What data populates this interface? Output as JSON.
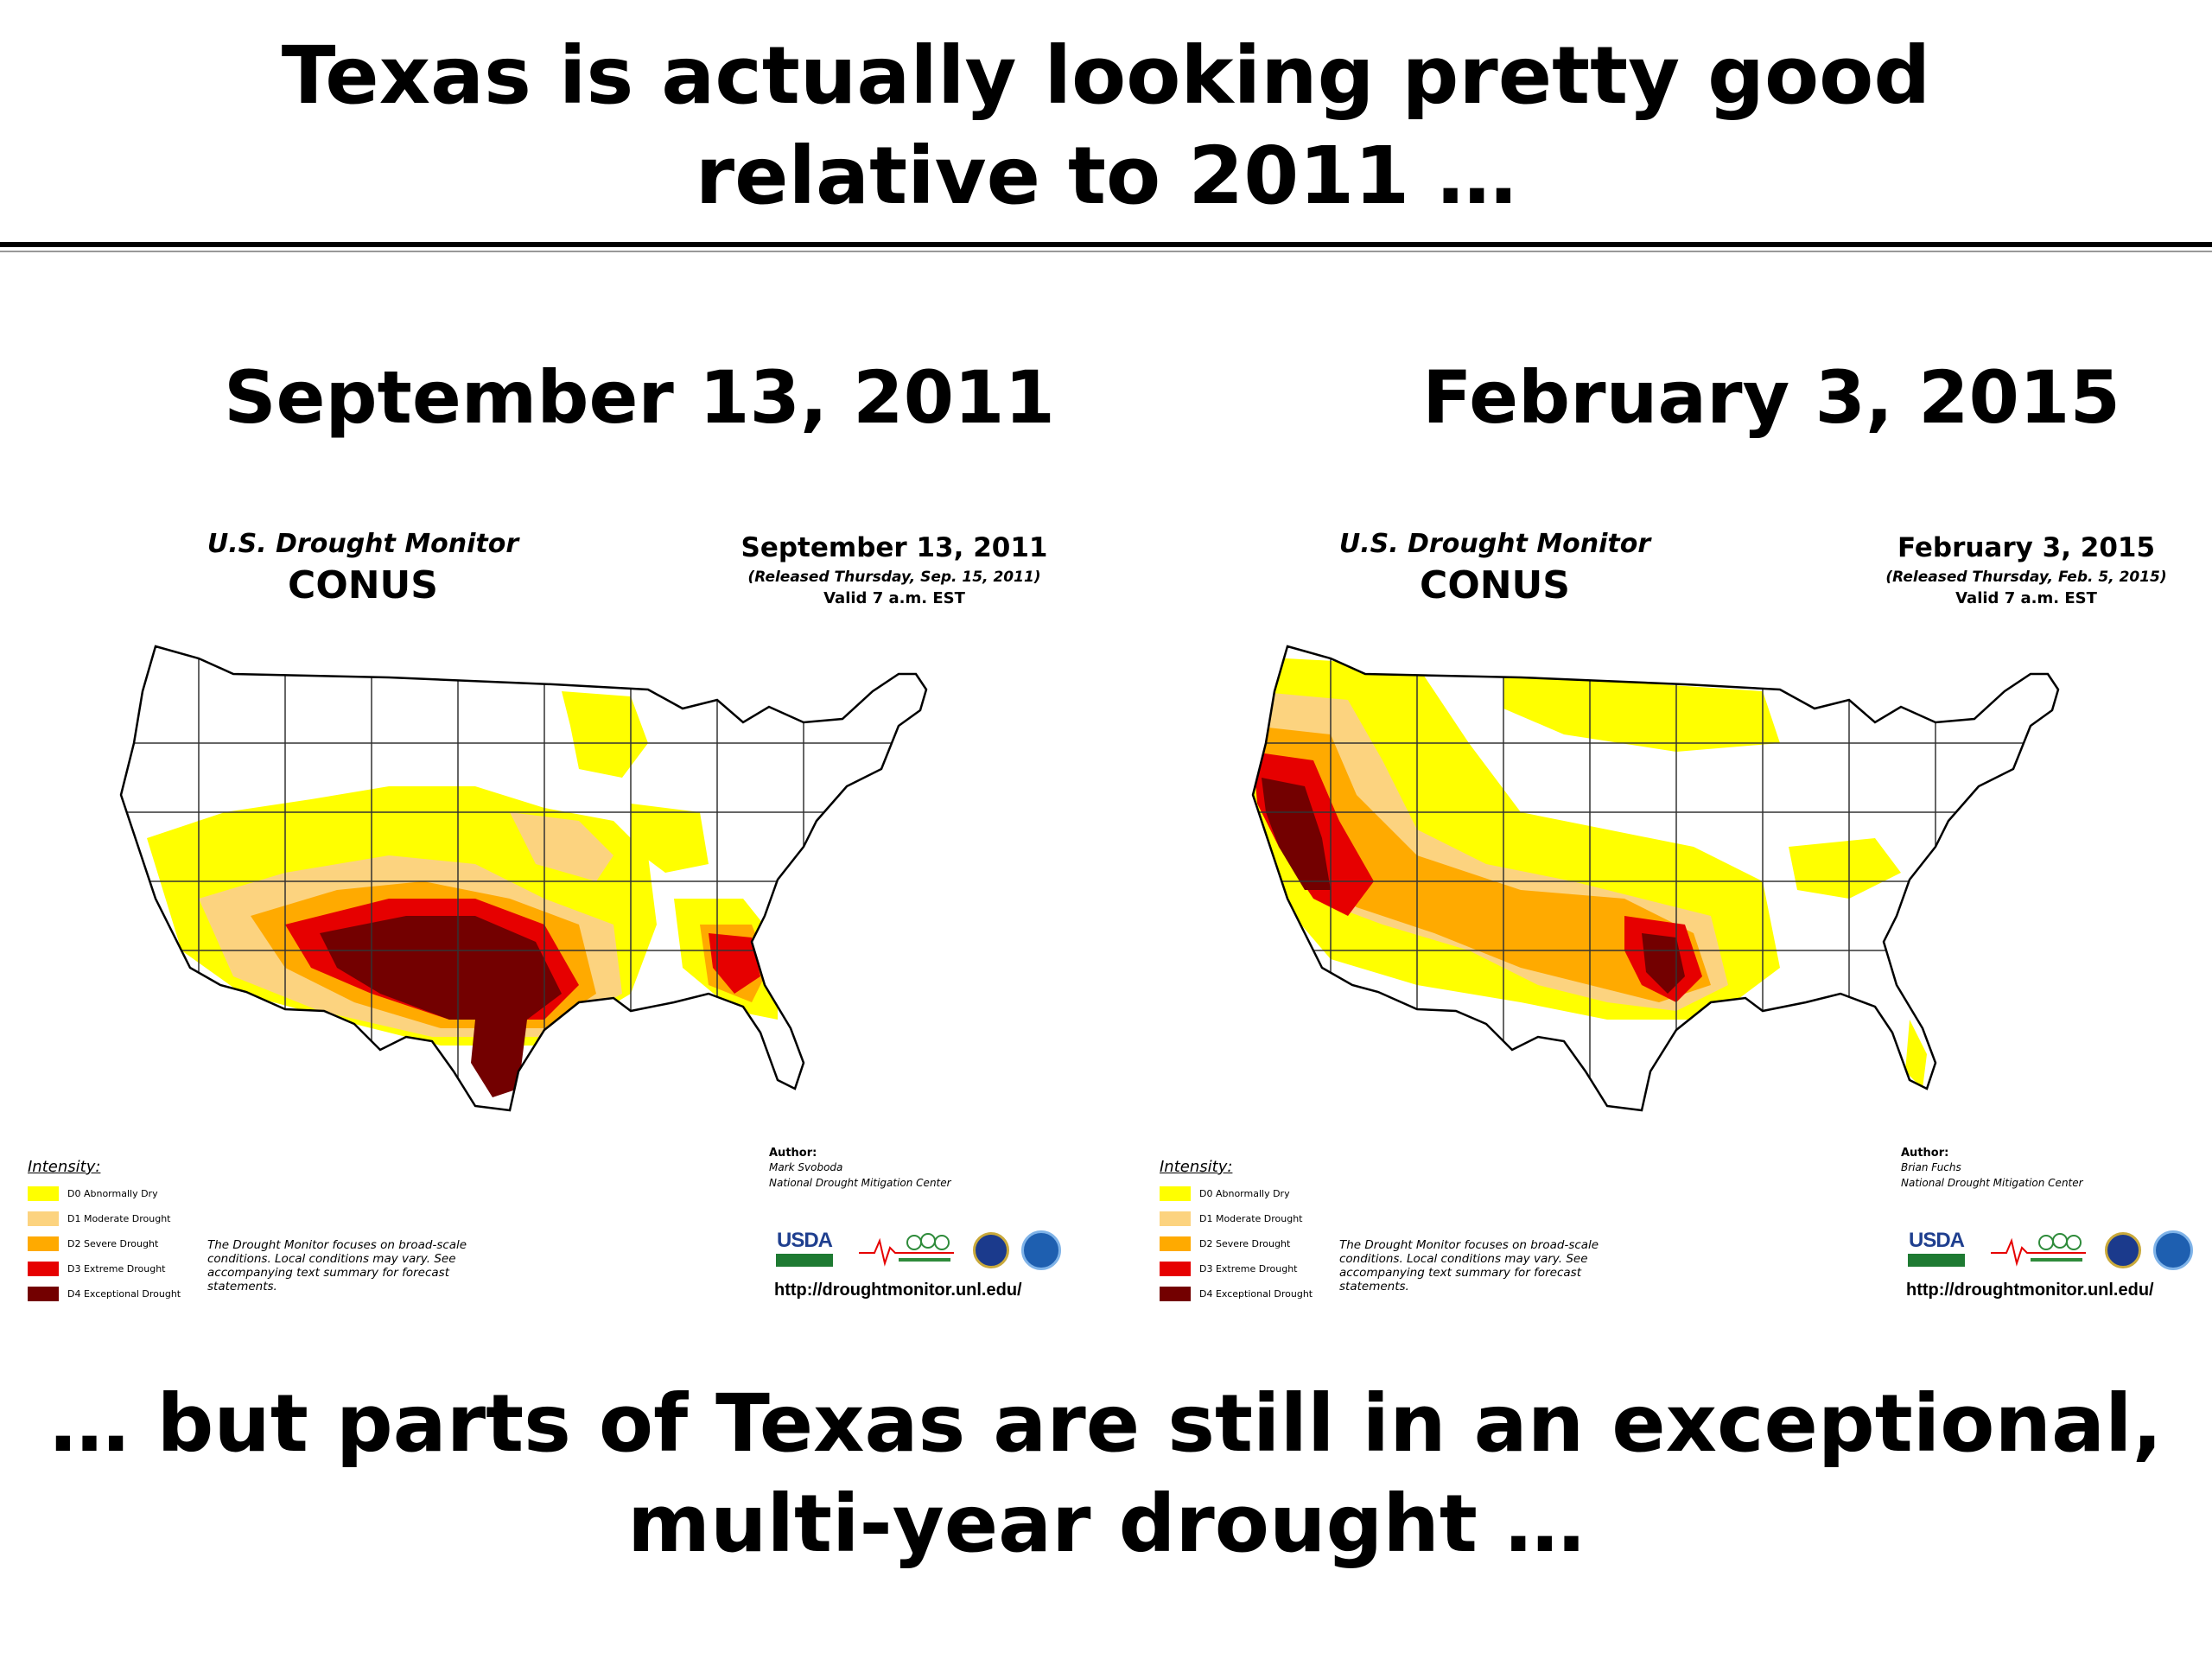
{
  "slide": {
    "title_line1": "Texas is actually looking pretty good",
    "title_line2": "relative to 2011 …",
    "footer_line1": "… but parts of Texas are still in an exceptional,",
    "footer_line2": "multi-year drought …"
  },
  "legend_colors": {
    "D0": "#ffff00",
    "D1": "#fcd37f",
    "D2": "#ffaa00",
    "D3": "#e60000",
    "D4": "#730000"
  },
  "maps": [
    {
      "heading": "September 13, 2011",
      "usdm_title": "U.S. Drought Monitor",
      "region": "CONUS",
      "date": "September 13, 2011",
      "released": "(Released Thursday, Sep. 15, 2011)",
      "valid": "Valid 7 a.m. EST",
      "legend_title": "Intensity:",
      "legend": [
        "D0 Abnormally Dry",
        "D1 Moderate Drought",
        "D2 Severe Drought",
        "D3 Extreme Drought",
        "D4 Exceptional Drought"
      ],
      "disclaimer": "The Drought Monitor focuses on broad-scale conditions. Local conditions may vary. See accompanying text summary for forecast statements.",
      "author_label": "Author:",
      "author_name": "Mark Svoboda",
      "author_org": "National Drought Mitigation Center",
      "usda": "USDA",
      "url": "http://droughtmonitor.unl.edu/"
    },
    {
      "heading": "February 3, 2015",
      "usdm_title": "U.S. Drought Monitor",
      "region": "CONUS",
      "date": "February 3, 2015",
      "released": "(Released Thursday, Feb. 5, 2015)",
      "valid": "Valid 7 a.m. EST",
      "legend_title": "Intensity:",
      "legend": [
        "D0 Abnormally Dry",
        "D1 Moderate Drought",
        "D2 Severe Drought",
        "D3 Extreme Drought",
        "D4 Exceptional Drought"
      ],
      "disclaimer": "The Drought Monitor focuses on broad-scale conditions. Local conditions may vary. See accompanying text summary for forecast statements.",
      "author_label": "Author:",
      "author_name": "Brian Fuchs",
      "author_org": "National Drought Mitigation Center",
      "usda": "USDA",
      "url": "http://droughtmonitor.unl.edu/"
    }
  ]
}
